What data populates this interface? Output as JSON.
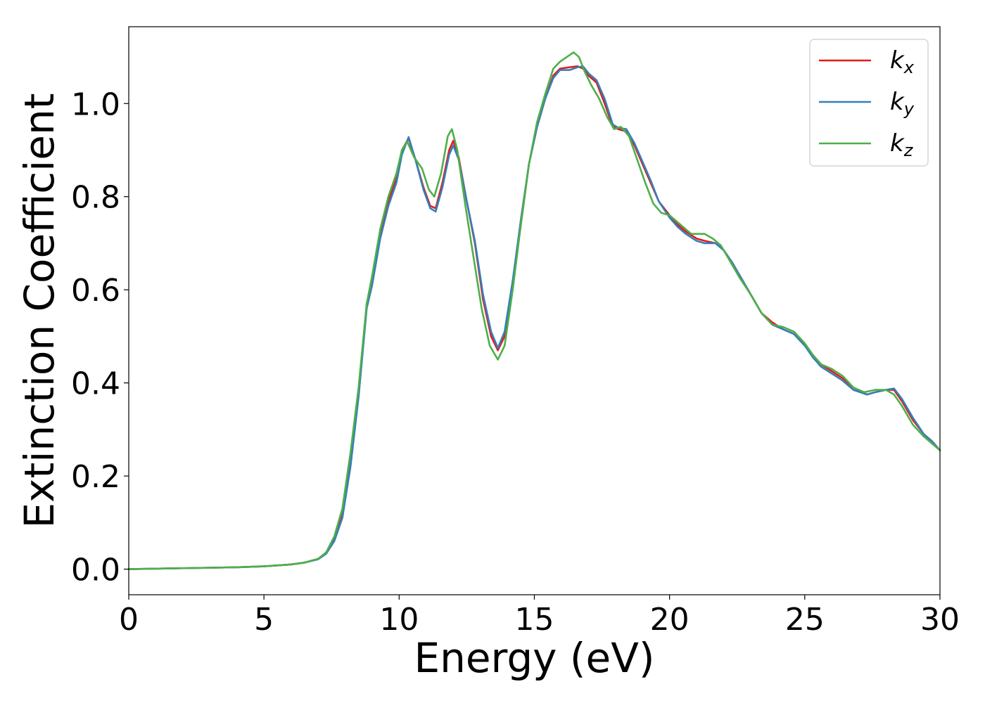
{
  "chart_data": {
    "type": "line",
    "xlabel": "Energy (eV)",
    "ylabel": "Extinction Coefficient",
    "xlim": [
      0,
      30
    ],
    "ylim": [
      -0.055,
      1.165
    ],
    "xticks": [
      0,
      5,
      10,
      15,
      20,
      25,
      30
    ],
    "xtick_labels": [
      "0",
      "5",
      "10",
      "15",
      "20",
      "25",
      "30"
    ],
    "yticks": [
      0.0,
      0.2,
      0.4,
      0.6,
      0.8,
      1.0
    ],
    "ytick_labels": [
      "0.0",
      "0.2",
      "0.4",
      "0.6",
      "0.8",
      "1.0"
    ],
    "grid": false,
    "legend_position": "top-right",
    "series": [
      {
        "name": "k_x",
        "label_base": "k",
        "label_sub": "x",
        "color": "#e41a1c",
        "x": [
          0,
          2,
          4,
          5,
          6,
          6.5,
          7,
          7.3,
          7.6,
          7.9,
          8.2,
          8.5,
          8.8,
          9.0,
          9.3,
          9.6,
          9.9,
          10.1,
          10.35,
          10.6,
          10.9,
          11.15,
          11.35,
          11.6,
          11.85,
          12.0,
          12.2,
          12.5,
          12.8,
          13.1,
          13.4,
          13.65,
          13.9,
          14.2,
          14.5,
          14.8,
          15.1,
          15.4,
          15.7,
          15.95,
          16.3,
          16.6,
          16.8,
          17.0,
          17.3,
          17.6,
          17.9,
          18.1,
          18.4,
          18.7,
          19.0,
          19.3,
          19.6,
          20.0,
          20.3,
          20.6,
          21.0,
          21.3,
          21.7,
          22.0,
          22.3,
          22.7,
          23.0,
          23.4,
          23.8,
          24.2,
          24.6,
          25.0,
          25.3,
          25.6,
          26.0,
          26.4,
          26.8,
          27.3,
          27.6,
          28.0,
          28.3,
          28.6,
          29.0,
          29.4,
          29.7,
          30.0
        ],
        "values": [
          0.0,
          0.002,
          0.004,
          0.006,
          0.01,
          0.014,
          0.022,
          0.035,
          0.065,
          0.12,
          0.23,
          0.38,
          0.57,
          0.62,
          0.72,
          0.79,
          0.84,
          0.9,
          0.925,
          0.88,
          0.82,
          0.78,
          0.775,
          0.83,
          0.9,
          0.92,
          0.885,
          0.79,
          0.7,
          0.58,
          0.5,
          0.47,
          0.5,
          0.61,
          0.74,
          0.87,
          0.95,
          1.01,
          1.06,
          1.075,
          1.078,
          1.08,
          1.075,
          1.06,
          1.045,
          1.0,
          0.95,
          0.945,
          0.94,
          0.91,
          0.87,
          0.83,
          0.79,
          0.76,
          0.74,
          0.725,
          0.71,
          0.705,
          0.7,
          0.685,
          0.66,
          0.62,
          0.59,
          0.55,
          0.53,
          0.515,
          0.505,
          0.48,
          0.46,
          0.44,
          0.425,
          0.41,
          0.39,
          0.375,
          0.38,
          0.385,
          0.385,
          0.36,
          0.32,
          0.29,
          0.275,
          0.255
        ]
      },
      {
        "name": "k_y",
        "label_base": "k",
        "label_sub": "y",
        "color": "#377eb8",
        "x": [
          0,
          2,
          4,
          5,
          6,
          6.5,
          7,
          7.3,
          7.6,
          7.9,
          8.2,
          8.5,
          8.8,
          9.0,
          9.3,
          9.6,
          9.9,
          10.1,
          10.35,
          10.6,
          10.9,
          11.15,
          11.35,
          11.6,
          11.85,
          12.0,
          12.2,
          12.5,
          12.8,
          13.1,
          13.4,
          13.65,
          13.9,
          14.2,
          14.5,
          14.8,
          15.1,
          15.4,
          15.7,
          15.95,
          16.3,
          16.6,
          16.8,
          17.0,
          17.3,
          17.6,
          17.9,
          18.1,
          18.4,
          18.7,
          19.0,
          19.3,
          19.6,
          20.0,
          20.3,
          20.6,
          21.0,
          21.3,
          21.7,
          22.0,
          22.3,
          22.7,
          23.0,
          23.4,
          23.8,
          24.2,
          24.6,
          25.0,
          25.3,
          25.6,
          26.0,
          26.4,
          26.8,
          27.3,
          27.6,
          28.0,
          28.3,
          28.6,
          29.0,
          29.4,
          29.7,
          30.0
        ],
        "values": [
          0.0,
          0.002,
          0.004,
          0.006,
          0.01,
          0.014,
          0.021,
          0.033,
          0.06,
          0.11,
          0.22,
          0.37,
          0.56,
          0.61,
          0.71,
          0.78,
          0.83,
          0.89,
          0.928,
          0.88,
          0.815,
          0.775,
          0.768,
          0.82,
          0.89,
          0.91,
          0.88,
          0.79,
          0.705,
          0.59,
          0.51,
          0.475,
          0.51,
          0.62,
          0.75,
          0.87,
          0.95,
          1.01,
          1.055,
          1.072,
          1.072,
          1.078,
          1.08,
          1.065,
          1.05,
          1.01,
          0.955,
          0.948,
          0.945,
          0.915,
          0.875,
          0.835,
          0.79,
          0.755,
          0.735,
          0.72,
          0.705,
          0.7,
          0.7,
          0.685,
          0.66,
          0.62,
          0.59,
          0.55,
          0.525,
          0.515,
          0.505,
          0.48,
          0.455,
          0.435,
          0.42,
          0.405,
          0.385,
          0.375,
          0.38,
          0.385,
          0.388,
          0.365,
          0.325,
          0.29,
          0.275,
          0.255
        ]
      },
      {
        "name": "k_z",
        "label_base": "k",
        "label_sub": "z",
        "color": "#4daf4a",
        "x": [
          0,
          2,
          4,
          5,
          6,
          6.5,
          7,
          7.3,
          7.6,
          7.9,
          8.2,
          8.5,
          8.8,
          9.0,
          9.3,
          9.6,
          9.9,
          10.1,
          10.3,
          10.55,
          10.85,
          11.1,
          11.3,
          11.55,
          11.8,
          11.95,
          12.15,
          12.45,
          12.75,
          13.05,
          13.35,
          13.65,
          13.9,
          14.2,
          14.5,
          14.8,
          15.1,
          15.4,
          15.7,
          15.95,
          16.2,
          16.45,
          16.65,
          16.85,
          17.1,
          17.4,
          17.7,
          17.95,
          18.2,
          18.5,
          18.8,
          19.1,
          19.4,
          19.7,
          20.0,
          20.4,
          20.8,
          21.3,
          21.6,
          21.9,
          22.2,
          22.6,
          23.0,
          23.4,
          23.8,
          24.2,
          24.6,
          25.0,
          25.3,
          25.6,
          26.0,
          26.4,
          26.8,
          27.2,
          27.6,
          28.0,
          28.3,
          28.6,
          29.0,
          29.4,
          29.7,
          30.0
        ],
        "values": [
          0.0,
          0.002,
          0.004,
          0.006,
          0.01,
          0.014,
          0.022,
          0.036,
          0.07,
          0.13,
          0.25,
          0.39,
          0.57,
          0.63,
          0.73,
          0.8,
          0.85,
          0.9,
          0.918,
          0.885,
          0.86,
          0.815,
          0.8,
          0.85,
          0.93,
          0.945,
          0.9,
          0.78,
          0.67,
          0.56,
          0.48,
          0.45,
          0.48,
          0.6,
          0.74,
          0.87,
          0.96,
          1.02,
          1.075,
          1.09,
          1.1,
          1.11,
          1.1,
          1.07,
          1.04,
          1.01,
          0.97,
          0.945,
          0.95,
          0.93,
          0.88,
          0.83,
          0.785,
          0.765,
          0.76,
          0.74,
          0.72,
          0.72,
          0.71,
          0.695,
          0.665,
          0.625,
          0.59,
          0.55,
          0.525,
          0.52,
          0.51,
          0.485,
          0.46,
          0.44,
          0.43,
          0.415,
          0.39,
          0.38,
          0.385,
          0.385,
          0.375,
          0.35,
          0.31,
          0.285,
          0.27,
          0.255
        ]
      }
    ]
  }
}
